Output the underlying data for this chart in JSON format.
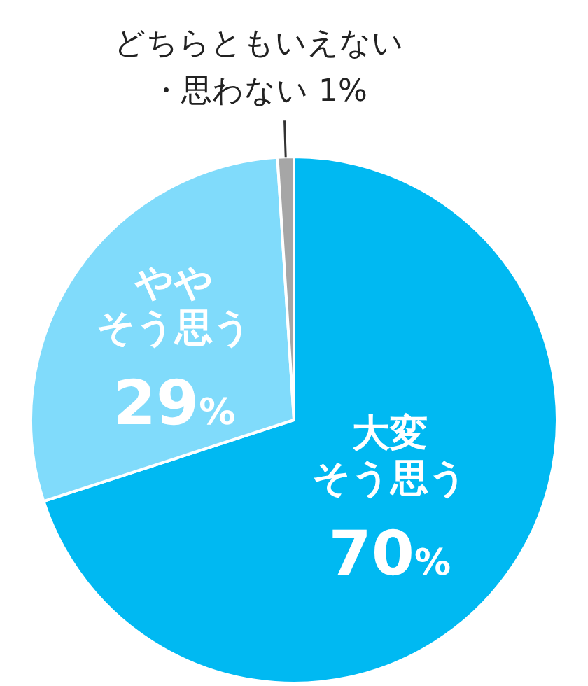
{
  "chart_data": {
    "type": "pie",
    "categories": [
      "大変そう思う",
      "ややそう思う",
      "どちらともいえない・思わない"
    ],
    "values": [
      70,
      29,
      1
    ],
    "colors": [
      "#00b9f2",
      "#80dbfb",
      "#a6a6a6"
    ],
    "value_labels": [
      "70%",
      "29%",
      "1%"
    ]
  }
}
